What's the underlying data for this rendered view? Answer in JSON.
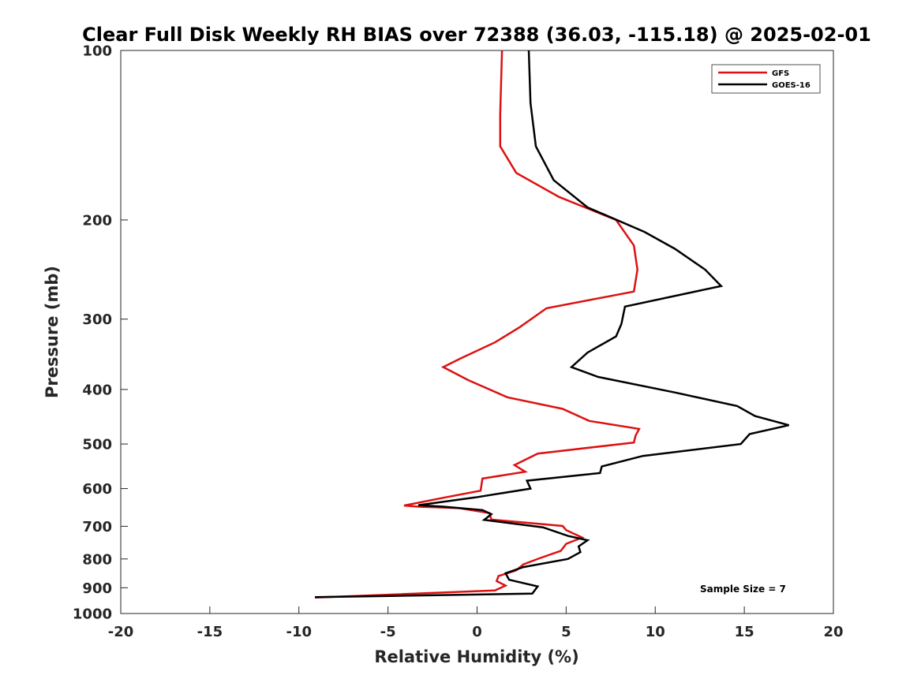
{
  "chart_data": {
    "type": "line",
    "title": "Clear Full Disk Weekly RH BIAS over 72388 (36.03, -115.18) @ 2025-02-01",
    "xlabel": "Relative Humidity (%)",
    "ylabel": "Pressure (mb)",
    "xlim": [
      -20,
      20
    ],
    "ylim": [
      100,
      1000
    ],
    "y_scale": "log",
    "y_reversed": true,
    "x_ticks": [
      -20,
      -15,
      -10,
      -5,
      0,
      5,
      10,
      15,
      20
    ],
    "y_ticks": [
      100,
      200,
      300,
      400,
      500,
      600,
      700,
      800,
      900,
      1000
    ],
    "grid": false,
    "legend_position": "top-right",
    "annotation": "Sample Size = 7",
    "series": [
      {
        "name": "GFS",
        "color": "#dd1111",
        "points": [
          [
            1.4,
            100
          ],
          [
            1.3,
            130
          ],
          [
            1.3,
            148
          ],
          [
            2.2,
            165
          ],
          [
            4.6,
            182
          ],
          [
            7.8,
            200
          ],
          [
            8.8,
            222
          ],
          [
            9.0,
            245
          ],
          [
            8.8,
            268
          ],
          [
            3.9,
            287
          ],
          [
            2.4,
            310
          ],
          [
            1.0,
            330
          ],
          [
            -0.9,
            352
          ],
          [
            -1.9,
            365
          ],
          [
            -0.5,
            385
          ],
          [
            1.7,
            413
          ],
          [
            4.8,
            433
          ],
          [
            6.3,
            455
          ],
          [
            9.1,
            470
          ],
          [
            8.9,
            483
          ],
          [
            8.8,
            497
          ],
          [
            3.4,
            520
          ],
          [
            2.1,
            545
          ],
          [
            2.7,
            560
          ],
          [
            0.3,
            576
          ],
          [
            0.2,
            605
          ],
          [
            -1.8,
            622
          ],
          [
            -4.1,
            643
          ],
          [
            -3.3,
            646
          ],
          [
            -1.0,
            650
          ],
          [
            0.7,
            663
          ],
          [
            0.8,
            681
          ],
          [
            4.8,
            699
          ],
          [
            5.0,
            711
          ],
          [
            5.9,
            733
          ],
          [
            5.0,
            752
          ],
          [
            4.7,
            774
          ],
          [
            3.5,
            798
          ],
          [
            2.6,
            818
          ],
          [
            2.2,
            838
          ],
          [
            1.2,
            858
          ],
          [
            1.1,
            876
          ],
          [
            1.6,
            892
          ],
          [
            1.0,
            910
          ],
          [
            -9.1,
            937
          ]
        ]
      },
      {
        "name": "GOES-16",
        "color": "#000000",
        "points": [
          [
            2.9,
            100
          ],
          [
            3.0,
            124
          ],
          [
            3.3,
            148
          ],
          [
            4.3,
            170
          ],
          [
            6.2,
            190
          ],
          [
            9.4,
            210
          ],
          [
            11.1,
            225
          ],
          [
            12.8,
            245
          ],
          [
            13.7,
            262
          ],
          [
            8.3,
            285
          ],
          [
            8.1,
            306
          ],
          [
            7.8,
            322
          ],
          [
            6.2,
            344
          ],
          [
            5.3,
            365
          ],
          [
            6.8,
            380
          ],
          [
            11.1,
            405
          ],
          [
            14.6,
            428
          ],
          [
            15.6,
            446
          ],
          [
            17.5,
            463
          ],
          [
            15.3,
            480
          ],
          [
            14.8,
            500
          ],
          [
            9.3,
            525
          ],
          [
            7.0,
            548
          ],
          [
            6.9,
            563
          ],
          [
            2.8,
            581
          ],
          [
            3.0,
            600
          ],
          [
            -0.1,
            622
          ],
          [
            -3.3,
            642
          ],
          [
            -1.9,
            646
          ],
          [
            0.3,
            655
          ],
          [
            0.8,
            666
          ],
          [
            0.4,
            682
          ],
          [
            3.7,
            703
          ],
          [
            5.1,
            728
          ],
          [
            6.2,
            741
          ],
          [
            5.7,
            760
          ],
          [
            5.8,
            778
          ],
          [
            5.1,
            800
          ],
          [
            2.6,
            827
          ],
          [
            1.6,
            848
          ],
          [
            1.8,
            871
          ],
          [
            3.4,
            895
          ],
          [
            3.1,
            922
          ],
          [
            -9.1,
            935
          ]
        ]
      }
    ]
  }
}
